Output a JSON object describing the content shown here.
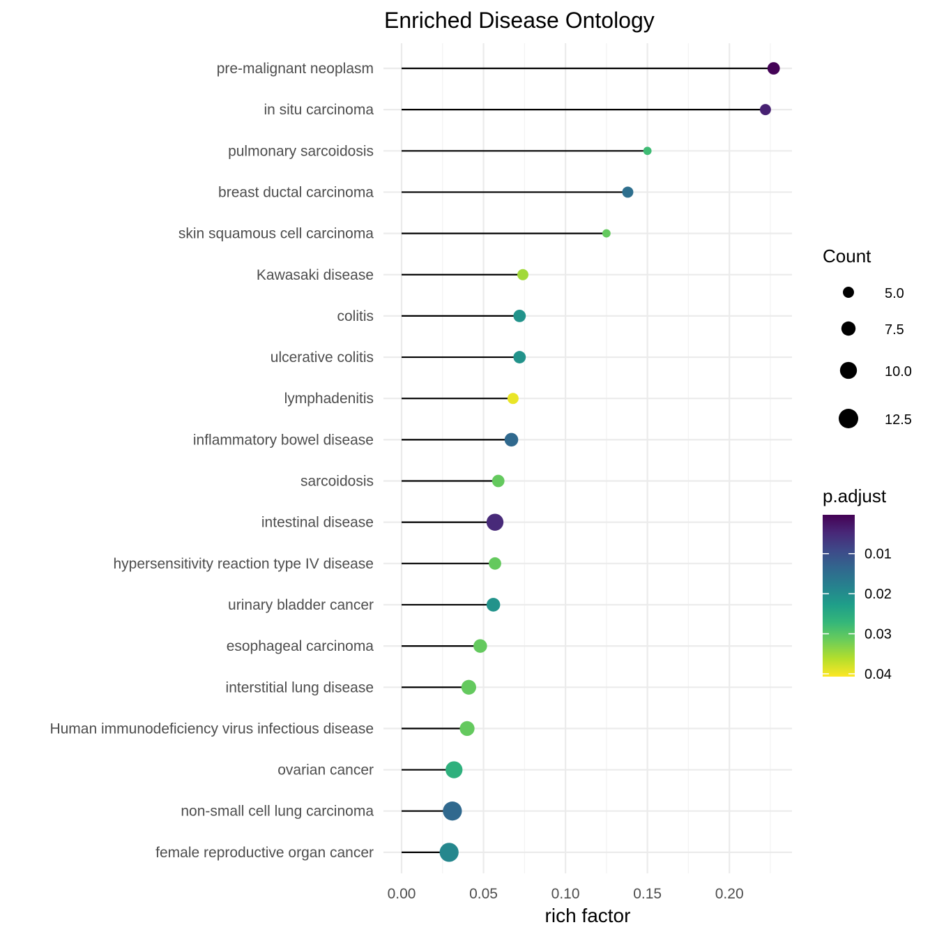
{
  "chart_data": {
    "type": "scatter",
    "subtype": "lollipop",
    "title": "Enriched Disease Ontology",
    "xlabel": "rich factor",
    "ylabel": "",
    "xlim": [
      0,
      0.2365
    ],
    "x_ticks": [
      0.0,
      0.05,
      0.1,
      0.15,
      0.2
    ],
    "x_tick_labels": [
      "0.00",
      "0.05",
      "0.10",
      "0.15",
      "0.20"
    ],
    "grid": true,
    "categories": [
      "pre-malignant neoplasm",
      "in situ carcinoma",
      "pulmonary sarcoidosis",
      "breast ductal carcinoma",
      "skin squamous cell carcinoma",
      "Kawasaki disease",
      "colitis",
      "ulcerative colitis",
      "lymphadenitis",
      "inflammatory bowel disease",
      "sarcoidosis",
      "intestinal disease",
      "hypersensitivity reaction type IV disease",
      "urinary bladder cancer",
      "esophageal carcinoma",
      "interstitial lung disease",
      "Human immunodeficiency virus infectious disease",
      "ovarian cancer",
      "non-small cell lung carcinoma",
      "female reproductive organ cancer"
    ],
    "rich_factor": [
      0.227,
      0.222,
      0.15,
      0.138,
      0.125,
      0.074,
      0.072,
      0.072,
      0.068,
      0.067,
      0.059,
      0.057,
      0.057,
      0.056,
      0.048,
      0.041,
      0.04,
      0.032,
      0.031,
      0.029
    ],
    "count": [
      6,
      5,
      3,
      5,
      3,
      5,
      6,
      6,
      5,
      7,
      6,
      10,
      6,
      7,
      7,
      8,
      8,
      10,
      12,
      12
    ],
    "p_adjust": [
      0.0005,
      0.004,
      0.028,
      0.015,
      0.031,
      0.035,
      0.021,
      0.021,
      0.0395,
      0.014,
      0.031,
      0.005,
      0.031,
      0.021,
      0.031,
      0.031,
      0.031,
      0.026,
      0.014,
      0.019
    ],
    "size_legend": {
      "title": "Count",
      "values": [
        5.0,
        7.5,
        10.0,
        12.5
      ],
      "labels": [
        "5.0",
        "7.5",
        "10.0",
        "12.5"
      ]
    },
    "color_legend": {
      "title": "p.adjust",
      "ticks": [
        0.01,
        0.02,
        0.03,
        0.04
      ],
      "tick_labels": [
        "0.01",
        "0.02",
        "0.03",
        "0.04"
      ],
      "range": [
        0.0003,
        0.0407
      ],
      "low_color": "#440154",
      "high_color": "#FDE725",
      "palette": [
        "#440154",
        "#482878",
        "#3E4A89",
        "#31688E",
        "#26828E",
        "#1F9E89",
        "#35B779",
        "#6DCD59",
        "#B4DE2C",
        "#FDE725"
      ]
    },
    "segment_color": "#000000",
    "legend_position": "right"
  }
}
